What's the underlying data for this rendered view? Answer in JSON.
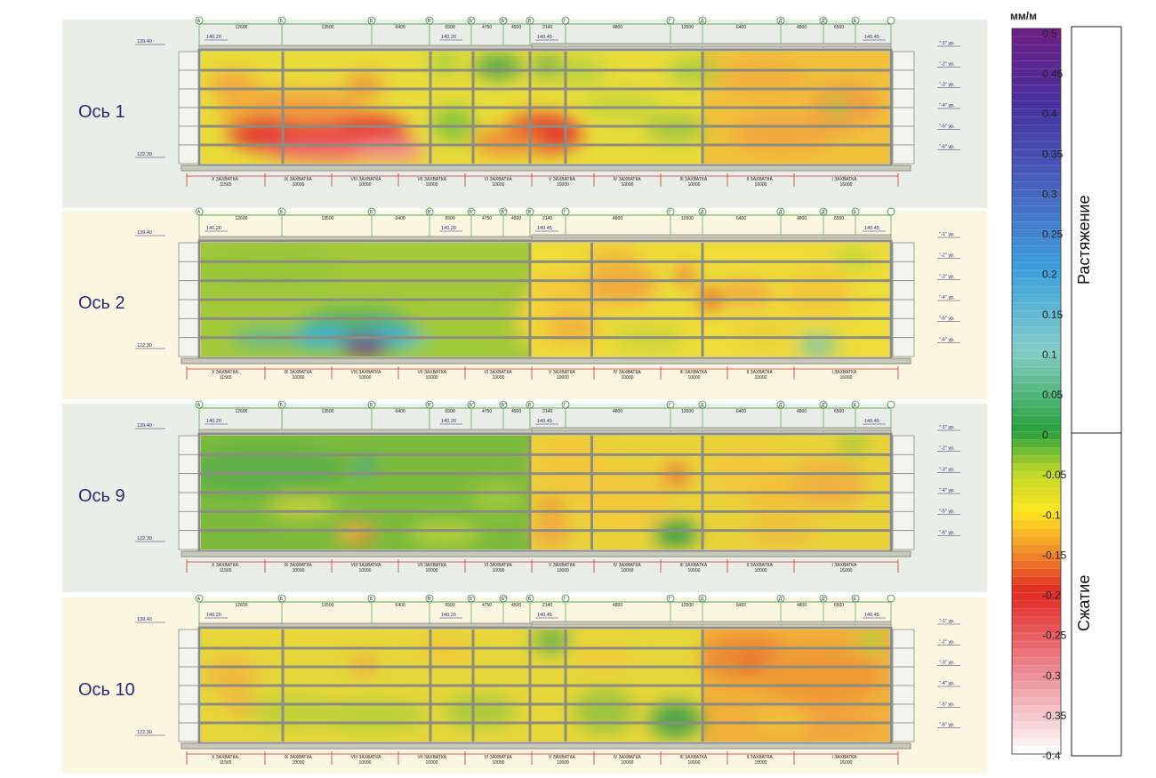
{
  "colorbar": {
    "unit": "мм/м",
    "ticks": [
      "0.5",
      "0.45",
      "0.4",
      "0.35",
      "0.3",
      "0.25",
      "0.2",
      "0.15",
      "0.1",
      "0.05",
      "0",
      "-0.05",
      "-0.1",
      "-0.15",
      "-0.2",
      "-0.25",
      "-0.3",
      "-0.35",
      "-0.4"
    ],
    "label_tension": "Растяжение",
    "label_compression": "Сжатие"
  },
  "axis_letters": [
    "А",
    "Б",
    "Б'",
    "В'",
    "Б''",
    "Б'''",
    "В",
    "Г",
    "Г'",
    "Д",
    "Д'",
    "Д''",
    "Е"
  ],
  "spans": [
    "12600",
    "13500",
    "6400",
    "6500",
    "4750",
    "4500",
    "2140",
    "4800",
    "12600",
    "6400",
    "4800",
    "6500"
  ],
  "elev_top_left": "139.40",
  "elev_bottom_left": "122.30",
  "roof_marks": [
    "140.20",
    "140.20",
    "140.45",
    "140.45"
  ],
  "levels": [
    "\"-1\" ур.",
    "\"-2\" ур.",
    "\"-3\" ур.",
    "\"-4\" ур.",
    "\"-5\" ур.",
    "\"-6\" ур."
  ],
  "zones": [
    {
      "name": "X ЗАХВАТКА",
      "length": "11565"
    },
    {
      "name": "IX ЗАХВАТКА",
      "length": "10000"
    },
    {
      "name": "VIII ЗАХВАТКА",
      "length": "10000"
    },
    {
      "name": "VII ЗАХВАТКА",
      "length": "10000"
    },
    {
      "name": "VI ЗАХВАТКА",
      "length": "10000"
    },
    {
      "name": "V ЗАХВАТКА",
      "length": "10000"
    },
    {
      "name": "IV ЗАХВАТКА",
      "length": "10000"
    },
    {
      "name": "III ЗАХВАТКА",
      "length": "10000"
    },
    {
      "name": "II ЗАХВАТКА",
      "length": "10000"
    },
    {
      "name": "I ЗАХВАТКА",
      "length": "16000"
    }
  ],
  "panels": [
    {
      "label": "Ось 1",
      "bg": "#e9efe6"
    },
    {
      "label": "Ось 2",
      "bg": "#fbf6df"
    },
    {
      "label": "Ось 9",
      "bg": "#e9efe6"
    },
    {
      "label": "Ось 10",
      "bg": "#fbf6df"
    }
  ]
}
